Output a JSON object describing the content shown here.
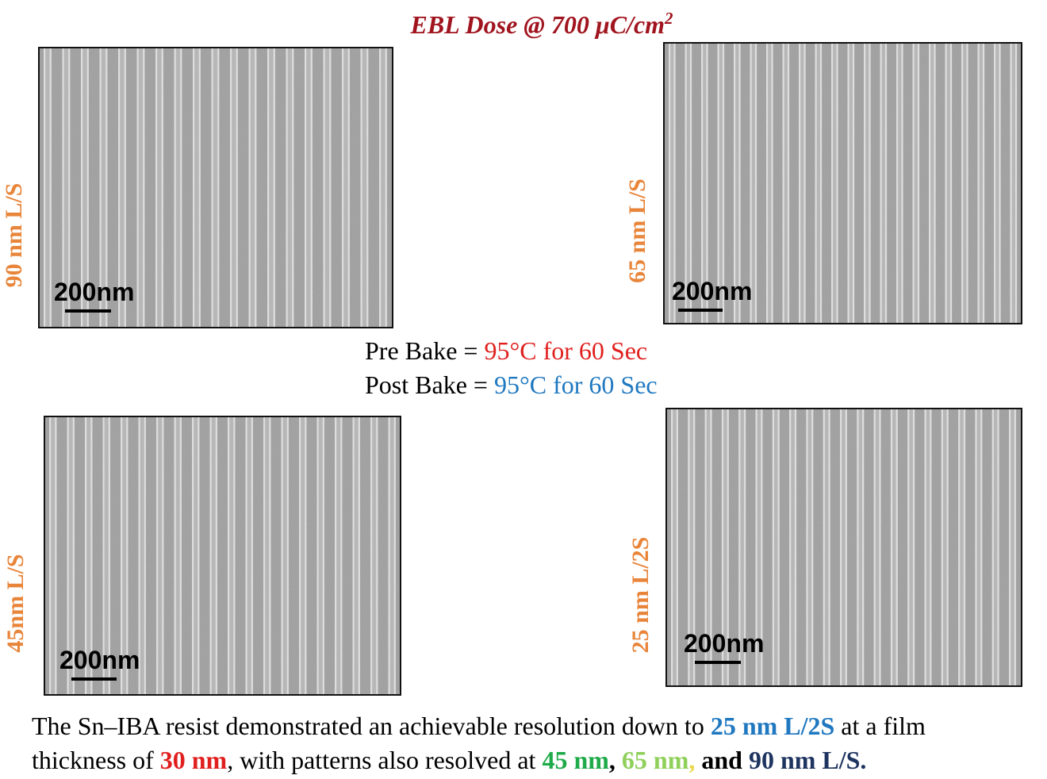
{
  "title": {
    "text": "EBL Dose @ 700 μC/cm",
    "superscript": "2"
  },
  "panels": [
    {
      "label": "90 nm L/S",
      "scale_bar": "200nm"
    },
    {
      "label": "65 nm L/S",
      "scale_bar": "200nm"
    },
    {
      "label": "45nm L/S",
      "scale_bar": "200nm"
    },
    {
      "label": "25 nm L/2S",
      "scale_bar": "200nm"
    }
  ],
  "bake": [
    {
      "label": "Pre Bake = ",
      "value": "95°C for 60 Sec",
      "color": "#e0201e"
    },
    {
      "label": "Post Bake = ",
      "value": "95°C for 60 Sec",
      "color": "#1f78c0"
    }
  ],
  "caption": [
    [
      {
        "text": "The Sn–IBA resist demonstrated an achievable resolution down to ",
        "color": "#000000",
        "bold": false
      },
      {
        "text": "25 nm L/2S",
        "color": "#1f78c0",
        "bold": true
      },
      {
        "text": " at a film",
        "color": "#000000",
        "bold": false
      }
    ],
    [
      {
        "text": "thickness of ",
        "color": "#000000",
        "bold": false
      },
      {
        "text": "30 nm",
        "color": "#e0201e",
        "bold": true
      },
      {
        "text": ", with patterns also resolved at ",
        "color": "#000000",
        "bold": false
      },
      {
        "text": "45 nm",
        "color": "#1faa4a",
        "bold": true
      },
      {
        "text": ",",
        "color": "#000000",
        "bold": true
      },
      {
        "text": " 65 nm",
        "color": "#8fd05a",
        "bold": true
      },
      {
        "text": ",",
        "color": "#e8d84a",
        "bold": true
      },
      {
        "text": " and ",
        "color": "#000000",
        "bold": true
      },
      {
        "text": "90 nm L/S.",
        "color": "#1e3460",
        "bold": true
      }
    ]
  ]
}
